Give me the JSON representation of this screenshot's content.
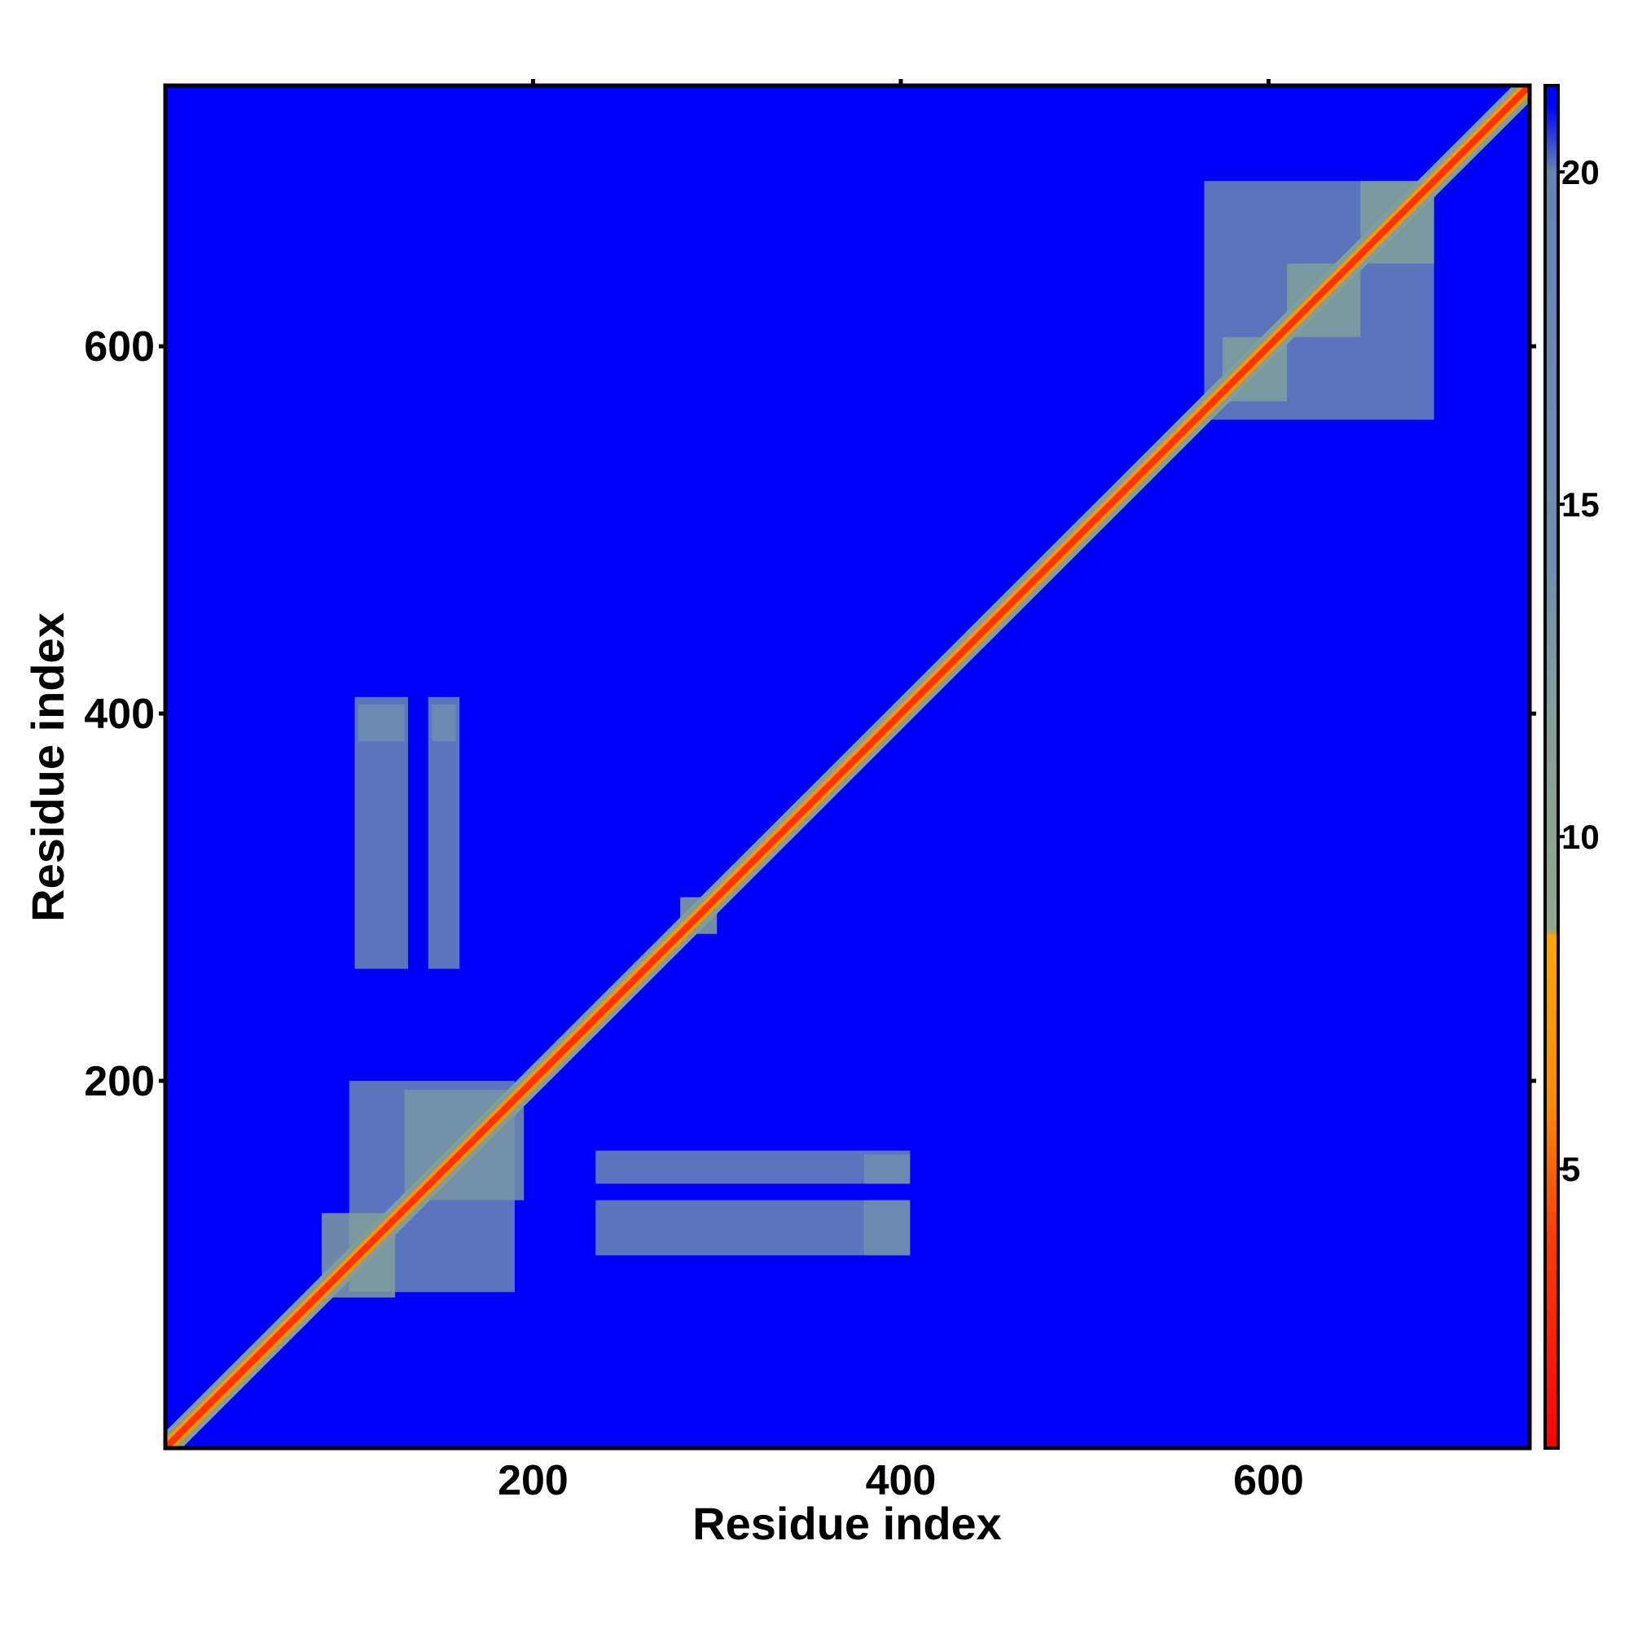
{
  "chart_data": {
    "type": "heatmap",
    "x_label": "Residue index",
    "y_label": "Residue index",
    "xlim": [
      0,
      742
    ],
    "ylim": [
      0,
      742
    ],
    "xticks": [
      200,
      400,
      600
    ],
    "yticks": [
      200,
      400,
      600
    ],
    "clim": [
      0.8,
      21.3
    ],
    "cticks": [
      5,
      10,
      15,
      20
    ],
    "colorscale": [
      {
        "value": 0.8,
        "color": "#ff0000"
      },
      {
        "value": 4,
        "color": "#ff3c00"
      },
      {
        "value": 6,
        "color": "#ff8c00"
      },
      {
        "value": 8.5,
        "color": "#ffa500"
      },
      {
        "value": 8.6,
        "color": "#8fa88a"
      },
      {
        "value": 12,
        "color": "#7f9f9a"
      },
      {
        "value": 14,
        "color": "#6f8fb0"
      },
      {
        "value": 20,
        "color": "#6484b4"
      },
      {
        "value": 21,
        "color": "#0000ff"
      }
    ],
    "regions": [
      {
        "x": [
          0,
          742
        ],
        "y": [
          0,
          742
        ],
        "value": 21.3
      },
      {
        "x": [
          100,
          190
        ],
        "y": [
          85,
          200
        ],
        "value": 17
      },
      {
        "x": [
          85,
          125
        ],
        "y": [
          82,
          128
        ],
        "value": 12
      },
      {
        "x": [
          130,
          195
        ],
        "y": [
          135,
          195
        ],
        "value": 13
      },
      {
        "x": [
          234,
          405
        ],
        "y": [
          105,
          135
        ],
        "value": 16
      },
      {
        "x": [
          234,
          405
        ],
        "y": [
          144,
          162
        ],
        "value": 17
      },
      {
        "x": [
          380,
          405
        ],
        "y": [
          105,
          135
        ],
        "value": 14
      },
      {
        "x": [
          380,
          405
        ],
        "y": [
          144,
          160
        ],
        "value": 14
      },
      {
        "x": [
          103,
          132
        ],
        "y": [
          261,
          409
        ],
        "value": 16
      },
      {
        "x": [
          143,
          160
        ],
        "y": [
          261,
          409
        ],
        "value": 16
      },
      {
        "x": [
          105,
          130
        ],
        "y": [
          385,
          405
        ],
        "value": 14
      },
      {
        "x": [
          145,
          158
        ],
        "y": [
          385,
          405
        ],
        "value": 14
      },
      {
        "x": [
          565,
          690
        ],
        "y": [
          560,
          690
        ],
        "value": 17
      },
      {
        "x": [
          575,
          610
        ],
        "y": [
          570,
          605
        ],
        "value": 12
      },
      {
        "x": [
          610,
          650
        ],
        "y": [
          605,
          645
        ],
        "value": 12
      },
      {
        "x": [
          650,
          690
        ],
        "y": [
          645,
          690
        ],
        "value": 12
      },
      {
        "x": [
          280,
          300
        ],
        "y": [
          280,
          300
        ],
        "value": 10
      }
    ],
    "diagonal": [
      {
        "halfwidth": 9,
        "value": 12
      },
      {
        "halfwidth": 5,
        "value": 7
      },
      {
        "halfwidth": 2.5,
        "value": 3.5
      }
    ]
  }
}
